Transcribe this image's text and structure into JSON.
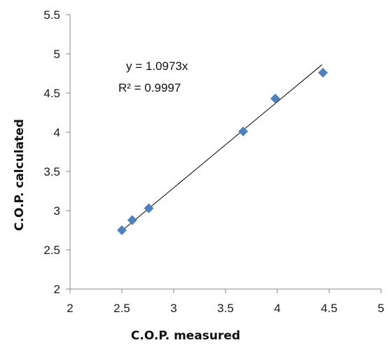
{
  "chart_data": {
    "type": "scatter",
    "xlabel": "C.O.P. measured",
    "ylabel": "C.O.P. calculated",
    "xlim": [
      2,
      5
    ],
    "ylim": [
      2,
      5.5
    ],
    "x_ticks": [
      "2",
      "2.5",
      "3",
      "3.5",
      "4",
      "4.5",
      "5"
    ],
    "y_ticks": [
      "2",
      "2.5",
      "3",
      "3.5",
      "4",
      "4.5",
      "5",
      "5.5"
    ],
    "grid": false,
    "marker": "diamond",
    "marker_color": "#4f81bd",
    "trendline_color": "#000000",
    "series": [
      {
        "x": [
          2.5,
          2.6,
          2.76,
          3.67,
          3.98,
          4.44
        ],
        "y": [
          2.75,
          2.88,
          3.03,
          4.01,
          4.43,
          4.76
        ]
      }
    ],
    "trendline": {
      "slope": 1.0973,
      "x_range": [
        2.48,
        4.43
      ]
    },
    "annotations": {
      "equation": "y = 1.0973x",
      "r_squared": "R² = 0.9997"
    }
  }
}
